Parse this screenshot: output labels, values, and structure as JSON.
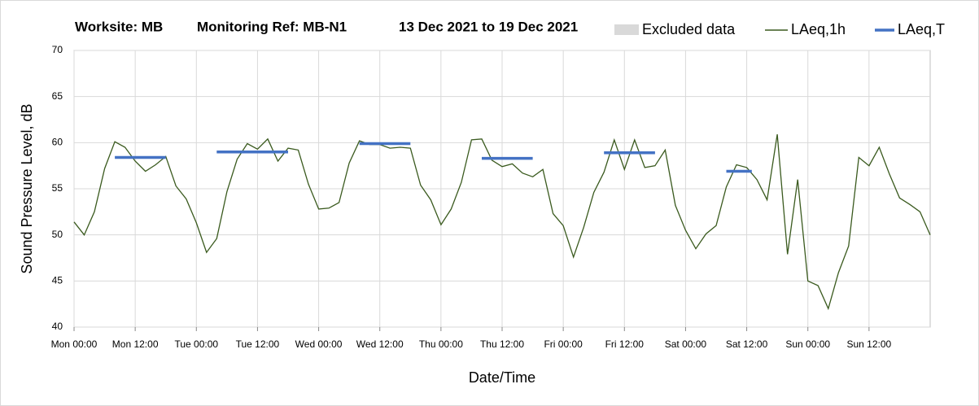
{
  "chart_data": {
    "type": "line",
    "title_parts": [
      "Worksite: MB",
      "Monitoring Ref: MB-N1",
      "13 Dec 2021 to 19 Dec 2021"
    ],
    "x_label": "Date/Time",
    "y_label": "Sound Pressure Level, dB",
    "xlim": [
      0,
      168
    ],
    "ylim": [
      40,
      70
    ],
    "xticks": [
      {
        "value": 0,
        "label": "Mon 00:00"
      },
      {
        "value": 12,
        "label": "Mon 12:00"
      },
      {
        "value": 24,
        "label": "Tue 00:00"
      },
      {
        "value": 36,
        "label": "Tue 12:00"
      },
      {
        "value": 48,
        "label": "Wed 00:00"
      },
      {
        "value": 60,
        "label": "Wed 12:00"
      },
      {
        "value": 72,
        "label": "Thu 00:00"
      },
      {
        "value": 84,
        "label": "Thu 12:00"
      },
      {
        "value": 96,
        "label": "Fri 00:00"
      },
      {
        "value": 108,
        "label": "Fri 12:00"
      },
      {
        "value": 120,
        "label": "Sat 00:00"
      },
      {
        "value": 132,
        "label": "Sat 12:00"
      },
      {
        "value": 144,
        "label": "Sun 00:00"
      },
      {
        "value": 156,
        "label": "Sun 12:00"
      }
    ],
    "yticks": [
      40,
      45,
      50,
      55,
      60,
      65,
      70
    ],
    "grid": true,
    "excluded": {
      "name": "Excluded data",
      "color": "#d9d9d9"
    },
    "series": [
      {
        "name": "LAeq,1h",
        "color": "#3a5a1e",
        "x": [
          0,
          2,
          4,
          6,
          8,
          10,
          12,
          14,
          16,
          18,
          20,
          22,
          24,
          26,
          28,
          30,
          32,
          34,
          36,
          38,
          40,
          42,
          44,
          46,
          48,
          50,
          52,
          54,
          56,
          58,
          60,
          62,
          64,
          66,
          68,
          70,
          72,
          74,
          76,
          78,
          80,
          82,
          84,
          86,
          88,
          90,
          92,
          94,
          96,
          98,
          100,
          102,
          104,
          106,
          108,
          110,
          112,
          114,
          116,
          118,
          120,
          122,
          124,
          126,
          128,
          130,
          132,
          134,
          136,
          138,
          140,
          142,
          144,
          146,
          148,
          150,
          152,
          154,
          156,
          158,
          160,
          162,
          164,
          166,
          168
        ],
        "values": [
          51.4,
          50,
          52.5,
          57.2,
          60.1,
          59.5,
          58,
          56.9,
          57.6,
          58.5,
          55.3,
          53.9,
          51.3,
          48.1,
          49.6,
          54.7,
          58.2,
          59.9,
          59.3,
          60.4,
          58,
          59.4,
          59.2,
          55.5,
          52.8,
          52.9,
          53.5,
          57.8,
          60.2,
          59.8,
          59.8,
          59.4,
          59.5,
          59.4,
          55.4,
          53.8,
          51.1,
          52.8,
          55.7,
          60.3,
          60.4,
          58.1,
          57.4,
          57.7,
          56.7,
          56.3,
          57.1,
          52.3,
          51,
          47.6,
          50.8,
          54.6,
          56.8,
          60.3,
          57.1,
          60.3,
          57.3,
          57.5,
          59.2,
          53.2,
          50.5,
          48.5,
          50.1,
          51,
          55.2,
          57.6,
          57.3,
          56,
          53.8,
          60.9,
          47.9,
          56,
          45,
          44.5,
          42,
          45.9,
          48.8,
          58.4,
          57.5,
          59.5,
          56.6,
          54,
          53.3,
          52.5,
          50
        ]
      },
      {
        "name": "LAeq,T",
        "color": "#4472c4",
        "x": [
          8,
          18,
          18,
          28,
          42,
          42,
          56,
          66,
          66,
          80,
          90,
          90,
          104,
          114,
          114,
          128,
          133
        ],
        "values": [
          58.4,
          58.4,
          null,
          59,
          59,
          null,
          59.9,
          59.9,
          null,
          58.3,
          58.3,
          null,
          58.9,
          58.9,
          null,
          56.9,
          56.9
        ]
      }
    ]
  }
}
